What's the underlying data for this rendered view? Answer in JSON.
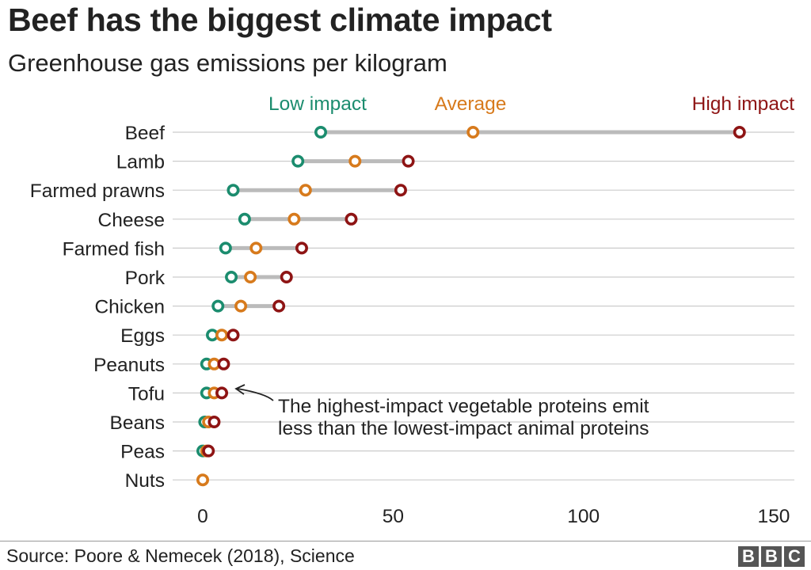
{
  "header": {
    "title": "Beef has the biggest climate impact",
    "subtitle": "Greenhouse gas emissions per kilogram"
  },
  "footer": {
    "source": "Source: Poore & Nemecek (2018), Science",
    "logo_letters": [
      "B",
      "B",
      "C"
    ]
  },
  "colors": {
    "low": "#1b8c6e",
    "average": "#d77a1c",
    "high": "#8e1414",
    "range_bar": "#bbbbbb",
    "gridline": "#cccccc"
  },
  "chart_data": {
    "type": "dot-range",
    "xlim": [
      0,
      150
    ],
    "xticks": [
      0,
      50,
      100,
      150
    ],
    "grid": "horizontal",
    "legend": [
      "Low impact",
      "Average",
      "High impact"
    ],
    "categories": [
      "Beef",
      "Lamb",
      "Farmed prawns",
      "Cheese",
      "Farmed fish",
      "Pork",
      "Chicken",
      "Eggs",
      "Peanuts",
      "Tofu",
      "Beans",
      "Peas",
      "Nuts"
    ],
    "series": [
      {
        "name": "Low impact",
        "values": [
          31,
          25,
          8,
          11,
          6,
          7.5,
          4,
          2.5,
          1,
          1,
          0.5,
          0,
          null
        ]
      },
      {
        "name": "Average",
        "values": [
          71,
          40,
          27,
          24,
          14,
          12.5,
          10,
          5,
          3,
          3,
          1.5,
          1,
          0
        ]
      },
      {
        "name": "High impact",
        "values": [
          141,
          54,
          52,
          39,
          26,
          22,
          20,
          8,
          5.5,
          5,
          3,
          1.5,
          null
        ]
      }
    ],
    "annotation": {
      "target": "Tofu",
      "lines": [
        "The highest-impact vegetable proteins emit",
        "less than the lowest-impact animal proteins"
      ]
    }
  }
}
